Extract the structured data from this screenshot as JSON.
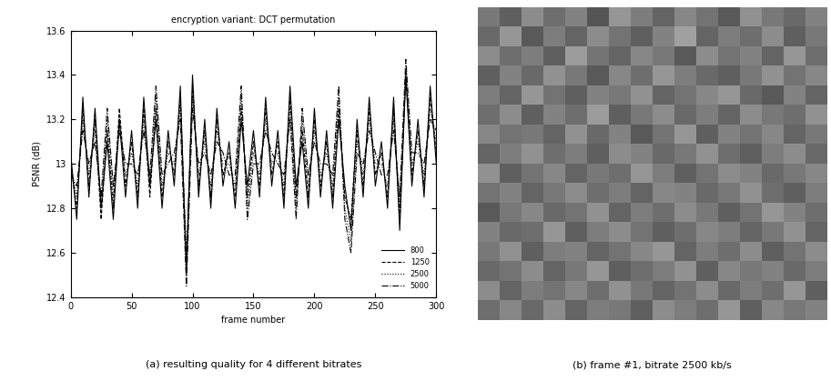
{
  "chart_data": [
    {
      "type": "line",
      "title": "encryption variant: DCT permutation",
      "caption": "(a) resulting quality for 4 different bitrates",
      "x_label": "frame number",
      "y_label": "PSNR (dB)",
      "x": [
        0,
        5,
        10,
        15,
        20,
        25,
        30,
        35,
        40,
        45,
        50,
        55,
        60,
        65,
        70,
        75,
        80,
        85,
        90,
        95,
        100,
        105,
        110,
        115,
        120,
        125,
        130,
        135,
        140,
        145,
        150,
        155,
        160,
        165,
        170,
        175,
        180,
        185,
        190,
        195,
        200,
        205,
        210,
        215,
        220,
        225,
        230,
        235,
        240,
        245,
        250,
        255,
        260,
        265,
        270,
        275,
        280,
        285,
        290,
        295,
        300
      ],
      "series": [
        {
          "name": "800",
          "color": "#000000",
          "line_style": "solid",
          "values": [
            13.05,
            12.75,
            13.3,
            12.85,
            13.25,
            12.8,
            13.1,
            12.75,
            13.2,
            12.85,
            13.15,
            12.8,
            13.3,
            12.9,
            13.2,
            12.8,
            13.15,
            12.9,
            13.35,
            12.5,
            13.4,
            12.85,
            13.2,
            12.8,
            13.25,
            12.9,
            13.1,
            12.8,
            13.2,
            12.9,
            13.15,
            12.85,
            13.3,
            12.9,
            13.15,
            12.8,
            13.35,
            12.9,
            13.1,
            12.8,
            13.25,
            12.85,
            13.15,
            12.8,
            13.2,
            12.9,
            12.7,
            13.2,
            12.85,
            13.3,
            12.9,
            13.1,
            12.8,
            13.3,
            12.7,
            13.4,
            12.9,
            13.2,
            12.85,
            13.35,
            13.0
          ]
        },
        {
          "name": "1250",
          "color": "#000000",
          "line_style": "dashed",
          "values": [
            13.0,
            12.8,
            13.25,
            12.9,
            13.2,
            12.75,
            13.15,
            12.8,
            13.25,
            12.9,
            13.1,
            12.85,
            13.25,
            12.85,
            13.25,
            12.85,
            13.1,
            12.95,
            13.3,
            12.55,
            13.35,
            12.9,
            13.15,
            12.85,
            13.2,
            12.95,
            13.05,
            12.85,
            13.25,
            12.85,
            13.1,
            12.9,
            13.25,
            12.95,
            13.1,
            12.85,
            13.3,
            12.85,
            13.15,
            12.85,
            13.2,
            12.9,
            13.1,
            12.85,
            13.25,
            12.85,
            12.75,
            13.15,
            12.9,
            13.25,
            12.95,
            13.05,
            12.85,
            13.25,
            12.75,
            13.42,
            12.95,
            13.15,
            12.9,
            13.3,
            13.05
          ]
        },
        {
          "name": "2500",
          "color": "#000000",
          "line_style": "dotted",
          "values": [
            13.0,
            12.85,
            13.2,
            12.95,
            13.15,
            12.8,
            13.2,
            12.85,
            13.2,
            12.95,
            13.05,
            12.9,
            13.2,
            12.9,
            13.3,
            12.9,
            13.05,
            13.0,
            13.25,
            12.6,
            13.3,
            12.95,
            13.1,
            12.9,
            13.15,
            13.0,
            13.0,
            12.9,
            13.3,
            12.8,
            13.05,
            12.95,
            13.2,
            13.0,
            13.05,
            12.9,
            13.25,
            12.8,
            13.2,
            12.9,
            13.15,
            12.95,
            13.05,
            12.9,
            13.3,
            12.8,
            12.65,
            13.1,
            12.95,
            13.2,
            13.0,
            13.0,
            12.9,
            13.2,
            12.8,
            13.38,
            13.0,
            13.1,
            12.95,
            13.25,
            13.1
          ]
        },
        {
          "name": "5000",
          "color": "#000000",
          "line_style": "dashdot",
          "values": [
            12.95,
            12.9,
            13.15,
            13.0,
            13.1,
            12.85,
            13.25,
            12.9,
            13.15,
            13.0,
            13.0,
            12.95,
            13.15,
            12.95,
            13.35,
            12.95,
            13.0,
            13.05,
            13.2,
            12.45,
            13.25,
            13.0,
            13.05,
            12.95,
            13.1,
            13.05,
            12.95,
            12.95,
            13.35,
            12.75,
            13.0,
            13.0,
            13.15,
            13.05,
            13.0,
            12.95,
            13.2,
            12.75,
            13.25,
            12.95,
            13.1,
            13.0,
            13.0,
            12.95,
            13.35,
            12.75,
            12.6,
            13.05,
            13.0,
            13.15,
            13.05,
            12.95,
            12.95,
            13.15,
            12.85,
            13.47,
            13.05,
            13.05,
            13.0,
            13.2,
            13.15
          ]
        }
      ],
      "xlim": [
        0,
        300
      ],
      "xticks": [
        0,
        50,
        100,
        150,
        200,
        250,
        300
      ],
      "ylim": [
        12.4,
        13.6
      ],
      "yticks": [
        12.4,
        12.6,
        12.8,
        13,
        13.2,
        13.4,
        13.6
      ],
      "legend": "lower right",
      "grid": false
    },
    {
      "type": "heatmap",
      "caption": "(b) frame #1, bitrate 2500 kb/s",
      "tick_labels": false,
      "crange": [
        0,
        255
      ],
      "cells": [
        [
          120,
          95,
          140,
          110,
          130,
          85,
          150,
          125,
          100,
          135,
          115,
          90,
          145,
          120,
          105,
          130
        ],
        [
          105,
          150,
          90,
          125,
          100,
          140,
          115,
          95,
          130,
          160,
          100,
          125,
          110,
          140,
          95,
          120
        ],
        [
          140,
          110,
          125,
          95,
          155,
          115,
          100,
          135,
          120,
          90,
          140,
          115,
          130,
          100,
          150,
          110
        ],
        [
          95,
          130,
          105,
          145,
          120,
          90,
          135,
          110,
          150,
          125,
          105,
          95,
          120,
          145,
          115,
          135
        ],
        [
          125,
          100,
          150,
          115,
          95,
          130,
          120,
          145,
          100,
          115,
          135,
          150,
          105,
          90,
          130,
          100
        ],
        [
          110,
          140,
          95,
          130,
          110,
          155,
          95,
          120,
          140,
          105,
          125,
          100,
          140,
          120,
          110,
          145
        ],
        [
          135,
          115,
          120,
          100,
          145,
          105,
          130,
          90,
          115,
          150,
          95,
          130,
          115,
          135,
          100,
          120
        ],
        [
          100,
          125,
          145,
          110,
          125,
          95,
          140,
          130,
          105,
          120,
          145,
          110,
          95,
          125,
          140,
          105
        ],
        [
          145,
          95,
          115,
          135,
          100,
          120,
          110,
          150,
          125,
          95,
          115,
          140,
          130,
          105,
          120,
          135
        ],
        [
          115,
          130,
          100,
          120,
          140,
          110,
          125,
          100,
          135,
          130,
          105,
          120,
          145,
          110,
          95,
          125
        ],
        [
          90,
          120,
          135,
          105,
          115,
          145,
          100,
          125,
          110,
          140,
          120,
          95,
          115,
          150,
          130,
          110
        ],
        [
          130,
          105,
          110,
          150,
          95,
          125,
          140,
          115,
          95,
          110,
          135,
          125,
          100,
          120,
          145,
          100
        ],
        [
          120,
          145,
          95,
          125,
          130,
          100,
          115,
          135,
          150,
          100,
          125,
          110,
          140,
          95,
          115,
          140
        ],
        [
          105,
          115,
          140,
          100,
          120,
          150,
          95,
          110,
          125,
          145,
          95,
          135,
          120,
          130,
          105,
          125
        ],
        [
          140,
          100,
          125,
          115,
          135,
          110,
          145,
          120,
          100,
          115,
          140,
          105,
          125,
          110,
          150,
          95
        ],
        [
          110,
          135,
          105,
          140,
          100,
          125,
          120,
          95,
          140,
          125,
          110,
          150,
          95,
          135,
          120,
          130
        ]
      ]
    }
  ]
}
